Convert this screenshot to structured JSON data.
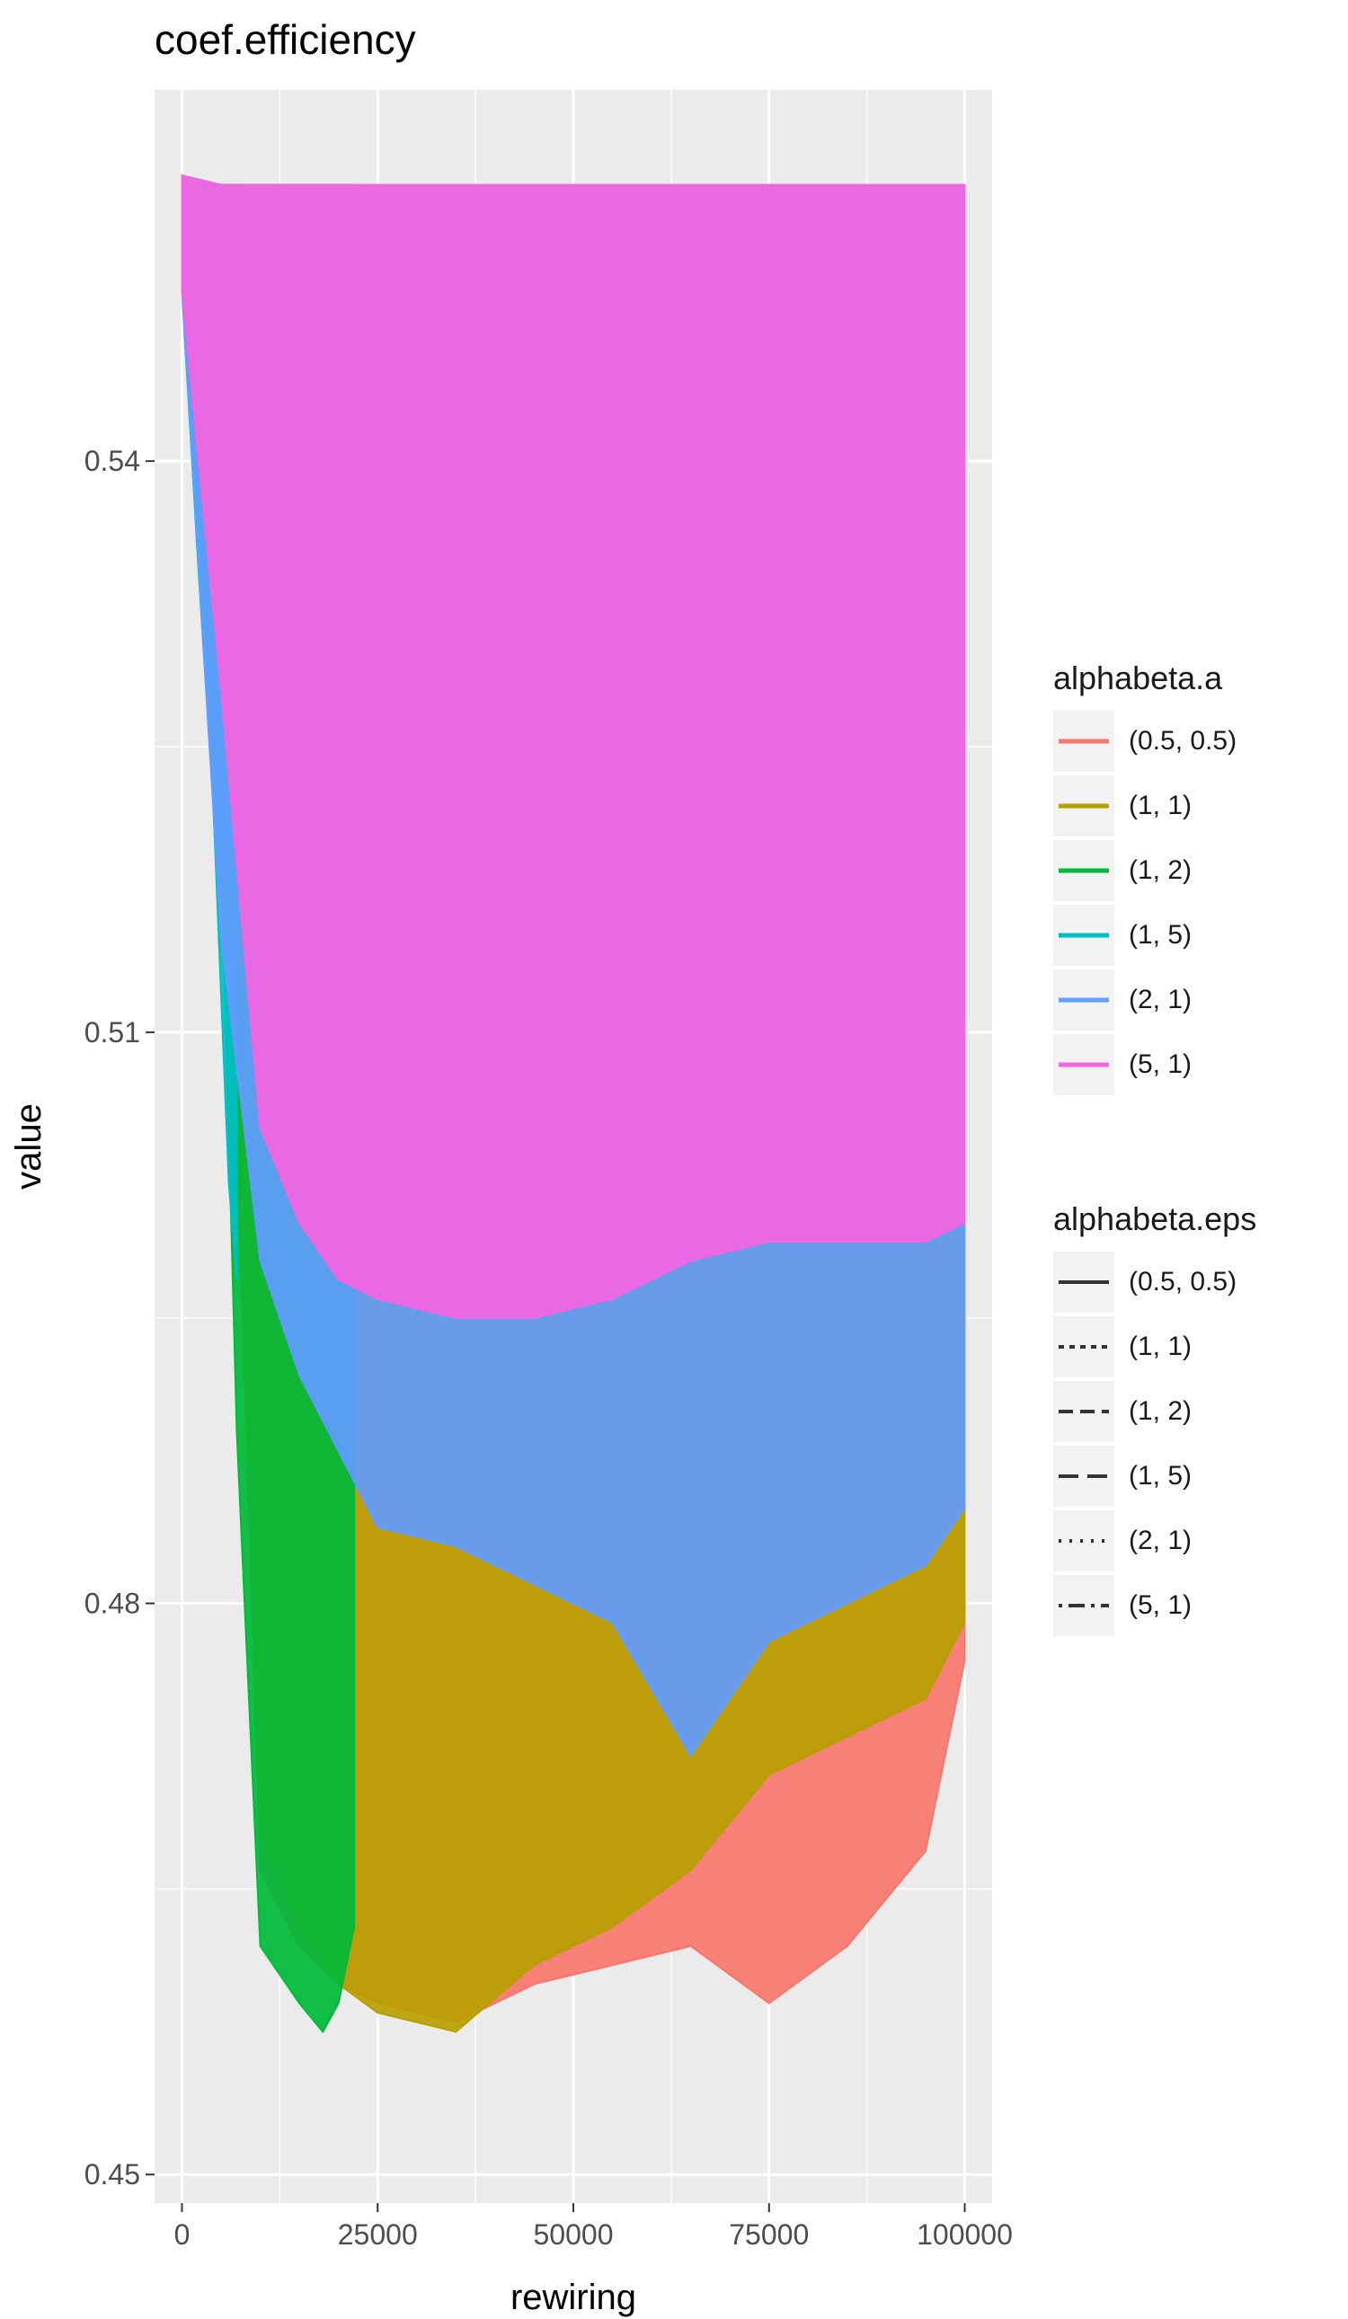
{
  "chart_data": {
    "type": "line",
    "title": "coef.efficiency",
    "xlabel": "rewiring",
    "ylabel": "value",
    "xlim": [
      -3500,
      103500
    ],
    "ylim": [
      0.4485,
      0.5595
    ],
    "x_ticks": [
      0,
      25000,
      50000,
      75000,
      100000
    ],
    "x_tick_labels": [
      "0",
      "25000",
      "50000",
      "75000",
      "100000"
    ],
    "y_ticks": [
      0.45,
      0.48,
      0.51,
      0.54
    ],
    "y_tick_labels": [
      "0.45",
      "0.48",
      "0.51",
      "0.54"
    ],
    "grid": true,
    "legend_position": "right",
    "legends": [
      {
        "title": "alphabeta.a",
        "aesthetic": "colour",
        "entries": [
          {
            "label": "(0.5, 0.5)",
            "color": "#F8766D"
          },
          {
            "label": "(1, 1)",
            "color": "#B79F00"
          },
          {
            "label": "(1, 2)",
            "color": "#00BA38"
          },
          {
            "label": "(1, 5)",
            "color": "#00BFC4"
          },
          {
            "label": "(2, 1)",
            "color": "#619CFF"
          },
          {
            "label": "(5, 1)",
            "color": "#F564E3"
          }
        ]
      },
      {
        "title": "alphabeta.eps",
        "aesthetic": "linetype",
        "entries": [
          {
            "label": "(0.5, 0.5)",
            "dash": "solid"
          },
          {
            "label": "(1, 1)",
            "dash": "dotted"
          },
          {
            "label": "(1, 2)",
            "dash": "dashed"
          },
          {
            "label": "(1, 5)",
            "dash": "longdash"
          },
          {
            "label": "(2, 1)",
            "dash": "dotted-fine"
          },
          {
            "label": "(5, 1)",
            "dash": "dotdash"
          }
        ]
      }
    ],
    "series_envelopes": [
      {
        "alpha": "(0.5, 0.5)",
        "color": "#F8766D",
        "x": [
          0,
          5000,
          10000,
          15000,
          20000,
          25000,
          35000,
          45000,
          55000,
          65000,
          75000,
          85000,
          95000,
          100000
        ],
        "upper": [
          0.555,
          0.5545,
          0.5545,
          0.5545,
          0.5545,
          0.5545,
          0.5545,
          0.5545,
          0.5545,
          0.5545,
          0.5545,
          0.5545,
          0.5545,
          0.5545
        ],
        "lower": [
          0.549,
          0.53,
          0.466,
          0.462,
          0.46,
          0.459,
          0.458,
          0.46,
          0.461,
          0.462,
          0.459,
          0.462,
          0.467,
          0.477
        ]
      },
      {
        "alpha": "(1, 1)",
        "color": "#B79F00",
        "x": [
          0,
          5000,
          10000,
          15000,
          20000,
          25000,
          35000,
          45000,
          55000,
          65000,
          75000,
          85000,
          95000,
          100000
        ],
        "upper": [
          0.555,
          0.5545,
          0.5545,
          0.5545,
          0.5545,
          0.5545,
          0.5545,
          0.5545,
          0.5545,
          0.5545,
          0.5545,
          0.5545,
          0.5545,
          0.5545
        ],
        "lower": [
          0.549,
          0.531,
          0.468,
          0.463,
          0.46,
          0.4585,
          0.4575,
          0.461,
          0.463,
          0.466,
          0.471,
          0.473,
          0.475,
          0.479
        ]
      },
      {
        "alpha": "(1, 2)",
        "color": "#00BA38",
        "x": [
          0,
          5000,
          7000,
          10000,
          15000,
          18000,
          20000,
          22000
        ],
        "upper": [
          0.555,
          0.5545,
          0.5545,
          0.5545,
          0.5545,
          0.5545,
          0.5545,
          0.5545
        ],
        "lower": [
          0.549,
          0.52,
          0.489,
          0.462,
          0.459,
          0.4575,
          0.459,
          0.463
        ]
      },
      {
        "alpha": "(1, 5)",
        "color": "#00BFC4",
        "x": [
          0,
          2000,
          4000,
          5000,
          6000,
          7000
        ],
        "upper": [
          0.555,
          0.5545,
          0.5545,
          0.5545,
          0.5545,
          0.5545
        ],
        "lower": [
          0.549,
          0.535,
          0.522,
          0.512,
          0.502,
          0.497
        ]
      },
      {
        "alpha": "(2, 1)",
        "color": "#619CFF",
        "x": [
          0,
          5000,
          10000,
          15000,
          20000,
          25000,
          35000,
          45000,
          55000,
          65000,
          75000,
          85000,
          95000,
          100000
        ],
        "upper": [
          0.555,
          0.5545,
          0.5545,
          0.5545,
          0.5545,
          0.5545,
          0.5545,
          0.5545,
          0.5545,
          0.5545,
          0.5545,
          0.5545,
          0.5545,
          0.5545
        ],
        "lower": [
          0.549,
          0.515,
          0.498,
          0.492,
          0.488,
          0.484,
          0.483,
          0.481,
          0.479,
          0.472,
          0.478,
          0.48,
          0.482,
          0.485
        ]
      },
      {
        "alpha": "(5, 1)",
        "color": "#F564E3",
        "x": [
          0,
          5000,
          10000,
          15000,
          20000,
          25000,
          35000,
          45000,
          55000,
          65000,
          75000,
          85000,
          95000,
          100000
        ],
        "upper": [
          0.555,
          0.5545,
          0.5545,
          0.5545,
          0.5545,
          0.5545,
          0.5545,
          0.5545,
          0.5545,
          0.5545,
          0.5545,
          0.5545,
          0.5545,
          0.5545
        ],
        "lower": [
          0.549,
          0.528,
          0.505,
          0.5,
          0.497,
          0.496,
          0.495,
          0.495,
          0.496,
          0.498,
          0.499,
          0.499,
          0.499,
          0.5
        ]
      }
    ]
  }
}
